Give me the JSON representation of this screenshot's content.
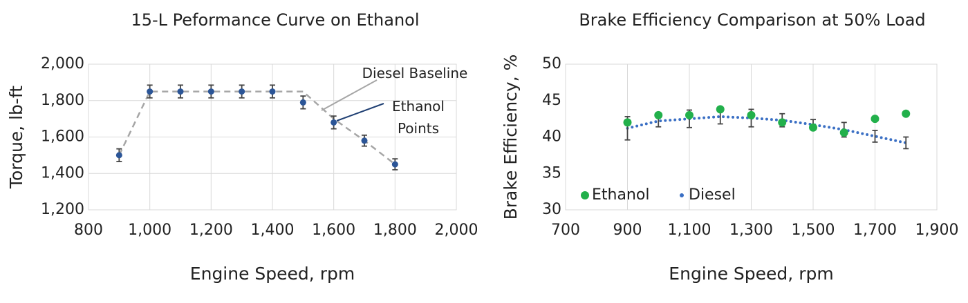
{
  "chart_data": [
    {
      "type": "scatter",
      "title": "15-L Peformance Curve on Ethanol",
      "xlabel": "Engine Speed, rpm",
      "ylabel": "Torque, lb-ft",
      "x": [
        900,
        1000,
        1100,
        1200,
        1300,
        1400,
        1500,
        1600,
        1700,
        1800
      ],
      "series": [
        {
          "name": "Ethanol Points",
          "color": "#2b5597",
          "line_style": "markers",
          "values": [
            1500,
            1850,
            1850,
            1850,
            1850,
            1850,
            1790,
            1680,
            1580,
            1450
          ],
          "errors": [
            35,
            35,
            35,
            35,
            35,
            35,
            35,
            35,
            30,
            30
          ]
        },
        {
          "name": "Diesel Baseline",
          "color": "#a6a6a6",
          "line_style": "dashed",
          "values": [
            1500,
            1850,
            1850,
            1850,
            1850,
            1850,
            1850,
            1700,
            1580,
            1450
          ]
        }
      ],
      "xlim": [
        800,
        2000
      ],
      "xticks": [
        800,
        {
          "value": 1000,
          "label": "1,000"
        },
        {
          "value": 1200,
          "label": "1,200"
        },
        {
          "value": 1400,
          "label": "1,400"
        },
        {
          "value": 1600,
          "label": "1,600"
        },
        {
          "value": 1800,
          "label": "1,800"
        },
        {
          "value": 2000,
          "label": "2,000"
        }
      ],
      "ylim": [
        1200,
        2000
      ],
      "yticks": [
        {
          "value": 1200,
          "label": "1,200"
        },
        {
          "value": 1400,
          "label": "1,400"
        },
        {
          "value": 1600,
          "label": "1,600"
        },
        {
          "value": 1800,
          "label": "1,800"
        },
        {
          "value": 2000,
          "label": "2,000"
        }
      ],
      "grid": "both",
      "annotations": [
        {
          "text": "Diesel Baseline",
          "color": "#a6a6a6"
        },
        {
          "text": "Ethanol Points",
          "color": "#1f3f73"
        }
      ]
    },
    {
      "type": "scatter",
      "title": "Brake Efficiency Comparison at 50% Load",
      "xlabel": "Engine Speed, rpm",
      "ylabel": "Brake Efficiency, %",
      "x": [
        900,
        1000,
        1100,
        1200,
        1300,
        1400,
        1500,
        1600,
        1700,
        1800
      ],
      "series": [
        {
          "name": "Ethanol",
          "color": "#22b04b",
          "line_style": "markers",
          "values": [
            42,
            43,
            43,
            43.8,
            43,
            42,
            41.3,
            40.6,
            42.5,
            43.2
          ]
        },
        {
          "name": "Diesel",
          "color": "#3a6fc4",
          "line_style": "dotted",
          "values": [
            41.2,
            42.2,
            42.5,
            42.8,
            42.6,
            42.3,
            41.7,
            41,
            40.1,
            39.2
          ],
          "errors": [
            1.6,
            0.8,
            1.2,
            1,
            1.2,
            0.9,
            0.7,
            1,
            0.8,
            0.8
          ]
        }
      ],
      "xlim": [
        700,
        1900
      ],
      "xticks": [
        700,
        900,
        {
          "value": 1100,
          "label": "1,100"
        },
        {
          "value": 1300,
          "label": "1,300"
        },
        {
          "value": 1500,
          "label": "1,500"
        },
        {
          "value": 1700,
          "label": "1,700"
        },
        {
          "value": 1900,
          "label": "1,900"
        }
      ],
      "ylim": [
        30,
        50
      ],
      "yticks": [
        30,
        35,
        40,
        45,
        50
      ],
      "grid": "x",
      "legend": "lower left"
    }
  ]
}
